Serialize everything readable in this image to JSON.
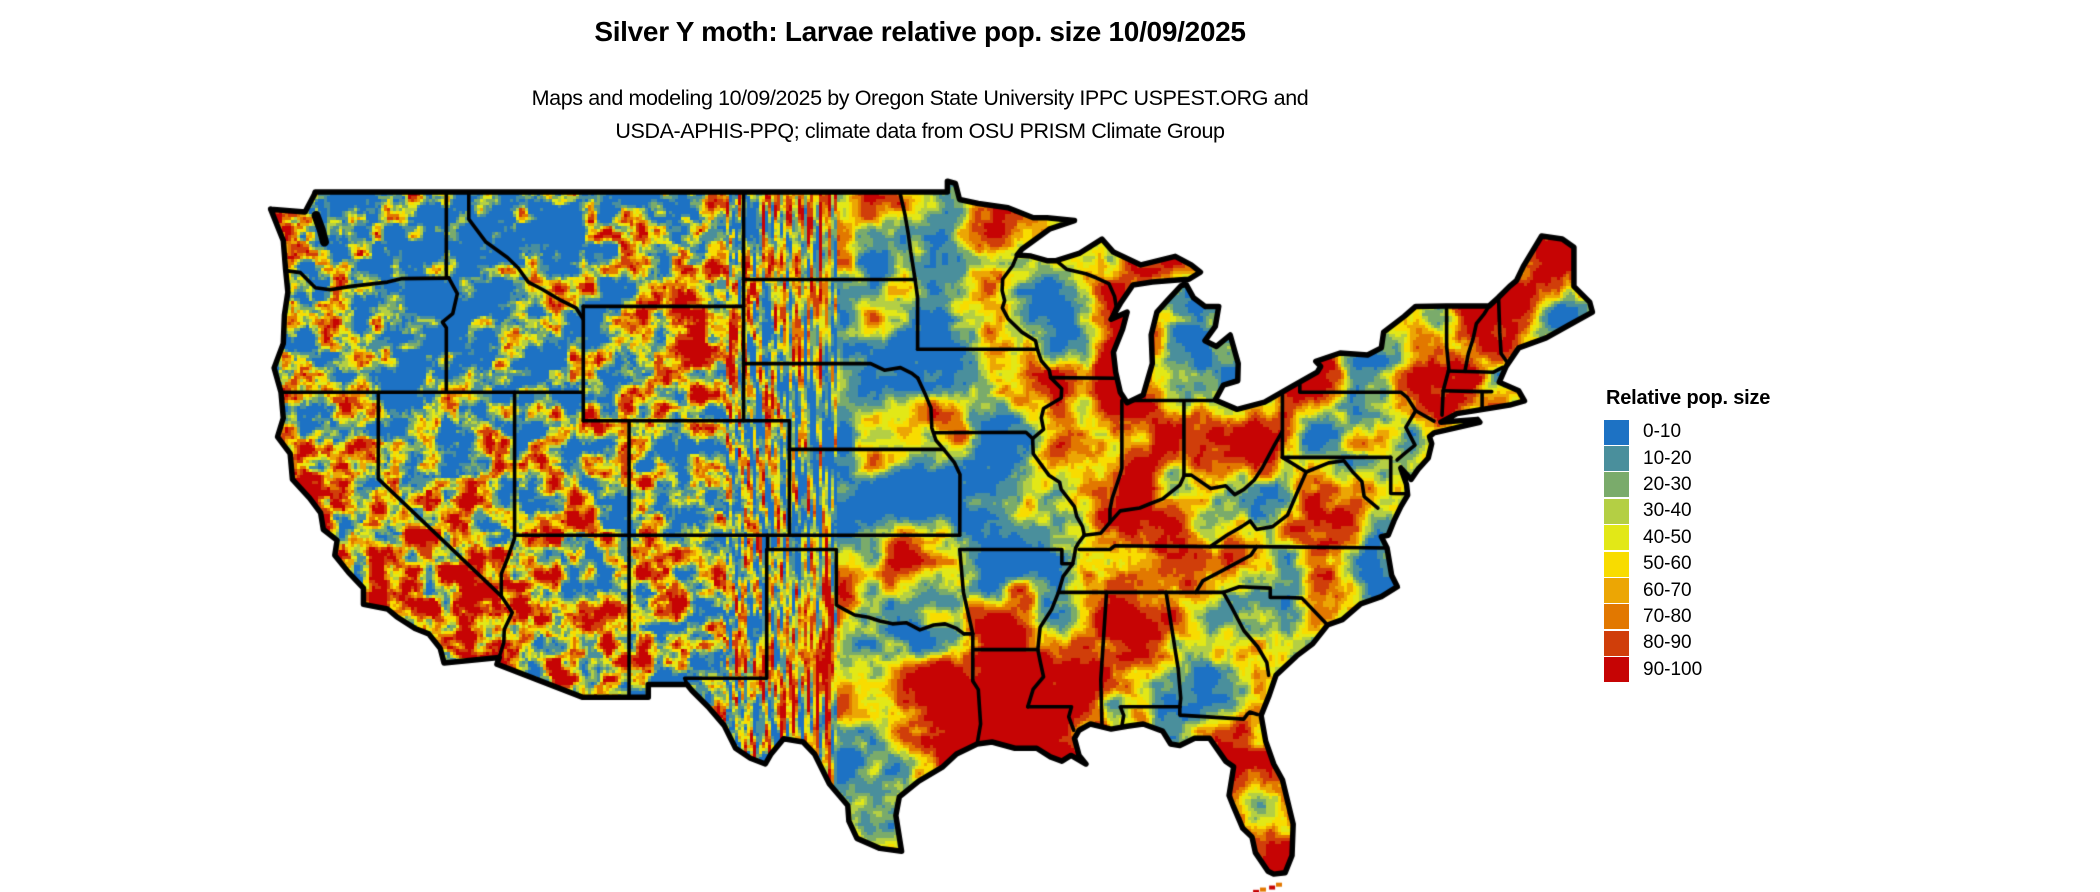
{
  "title": "Silver Y moth: Larvae relative pop. size 10/09/2025",
  "subtitle": {
    "line1": "Maps and modeling 10/09/2025 by Oregon State University IPPC USPEST.ORG and",
    "line2": "USDA-APHIS-PPQ; climate data from OSU PRISM Climate Group"
  },
  "legend": {
    "title": "Relative pop. size",
    "items": [
      {
        "label": "0-10",
        "color": "#1d72c4"
      },
      {
        "label": "10-20",
        "color": "#4a8f9c"
      },
      {
        "label": "20-30",
        "color": "#7aab6b"
      },
      {
        "label": "30-40",
        "color": "#b4cf44"
      },
      {
        "label": "40-50",
        "color": "#e2e817"
      },
      {
        "label": "50-60",
        "color": "#f8dc00"
      },
      {
        "label": "60-70",
        "color": "#eca604"
      },
      {
        "label": "70-80",
        "color": "#e27800"
      },
      {
        "label": "80-90",
        "color": "#d03e0a"
      },
      {
        "label": "90-100",
        "color": "#c60404"
      }
    ]
  },
  "map": {
    "border_color": "#000000",
    "background_color": "#ffffff",
    "water_color": "#ffffff"
  }
}
